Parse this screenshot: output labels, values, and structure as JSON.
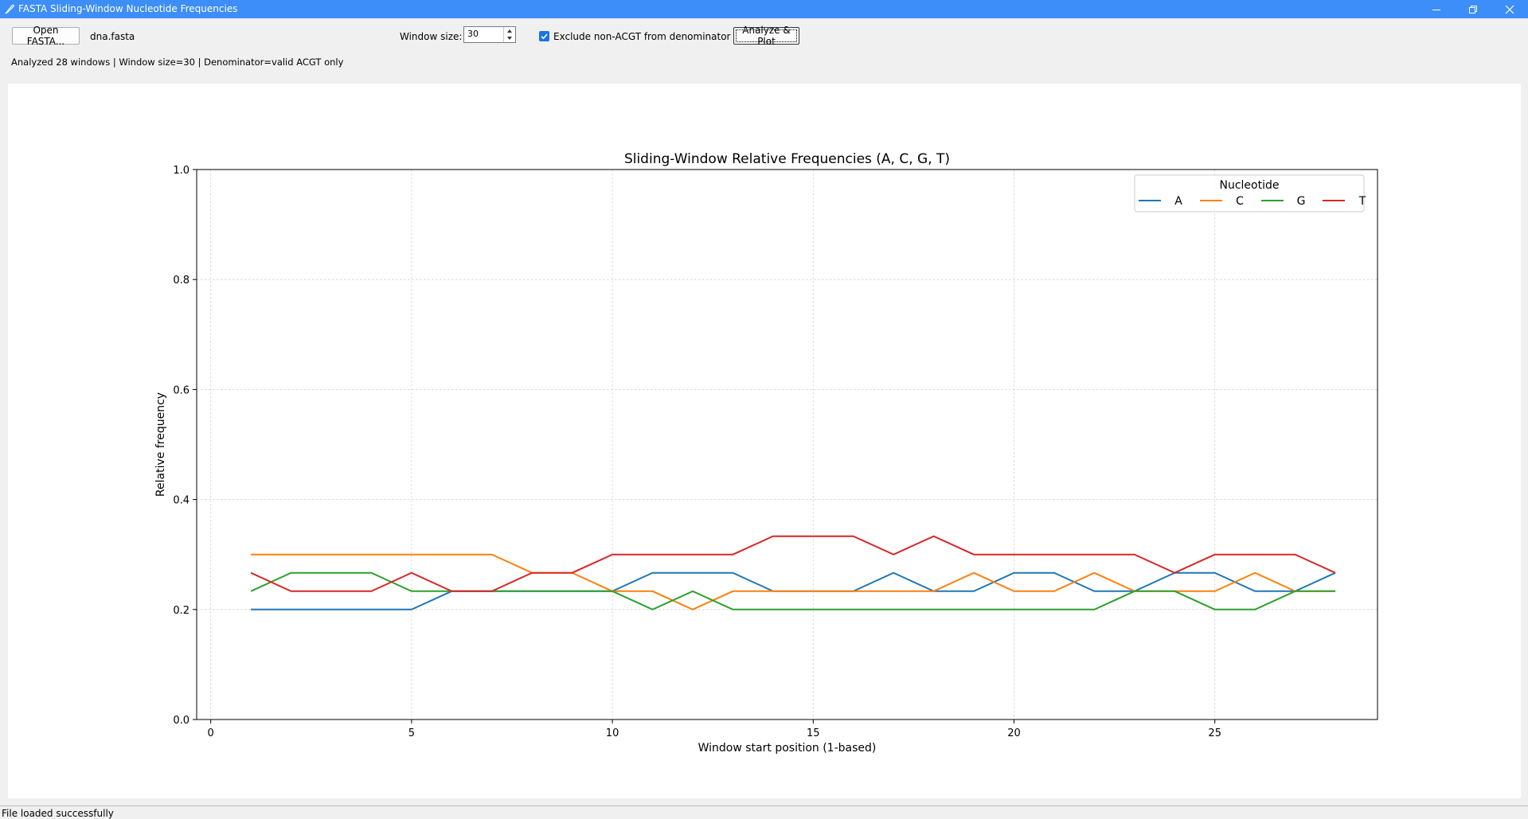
{
  "window": {
    "title": "FASTA Sliding-Window Nucleotide Frequencies",
    "icon": "feather-icon"
  },
  "toolbar": {
    "open_label": "Open FASTA...",
    "filename": "dna.fasta",
    "window_size_label": "Window size:",
    "window_size_value": "30",
    "exclude_label": "Exclude non-ACGT from denominator",
    "exclude_checked": true,
    "analyze_label": "Analyze & Plot"
  },
  "info": {
    "summary": "Analyzed 28 windows | Window size=30 | Denominator=valid ACGT only"
  },
  "status": {
    "message": "File loaded successfully"
  },
  "chart_data": {
    "type": "line",
    "title": "Sliding-Window Relative Frequencies (A, C, G, T)",
    "xlabel": "Window start position (1-based)",
    "ylabel": "Relative frequency",
    "xlim": [
      -0.35,
      29.05
    ],
    "ylim": [
      0.0,
      1.0
    ],
    "xticks": [
      0,
      5,
      10,
      15,
      20,
      25
    ],
    "yticks": [
      0.0,
      0.2,
      0.4,
      0.6,
      0.8,
      1.0
    ],
    "xtick_labels": [
      "0",
      "5",
      "10",
      "15",
      "20",
      "25"
    ],
    "ytick_labels": [
      "0.0",
      "0.2",
      "0.4",
      "0.6",
      "0.8",
      "1.0"
    ],
    "grid": true,
    "legend": {
      "title": "Nucleotide",
      "placement": "upper-right",
      "ncol": 4
    },
    "x": [
      1,
      2,
      3,
      4,
      5,
      6,
      7,
      8,
      9,
      10,
      11,
      12,
      13,
      14,
      15,
      16,
      17,
      18,
      19,
      20,
      21,
      22,
      23,
      24,
      25,
      26,
      27,
      28
    ],
    "series": [
      {
        "name": "A",
        "color": "#1f77b4",
        "values": [
          0.2,
          0.2,
          0.2,
          0.2,
          0.2,
          0.2333,
          0.2333,
          0.2333,
          0.2333,
          0.2333,
          0.2667,
          0.2667,
          0.2667,
          0.2333,
          0.2333,
          0.2333,
          0.2667,
          0.2333,
          0.2333,
          0.2667,
          0.2667,
          0.2333,
          0.2333,
          0.2667,
          0.2667,
          0.2333,
          0.2333,
          0.2667
        ]
      },
      {
        "name": "C",
        "color": "#ff7f0e",
        "values": [
          0.3,
          0.3,
          0.3,
          0.3,
          0.3,
          0.3,
          0.3,
          0.2667,
          0.2667,
          0.2333,
          0.2333,
          0.2,
          0.2333,
          0.2333,
          0.2333,
          0.2333,
          0.2333,
          0.2333,
          0.2667,
          0.2333,
          0.2333,
          0.2667,
          0.2333,
          0.2333,
          0.2333,
          0.2667,
          0.2333,
          0.2333
        ]
      },
      {
        "name": "G",
        "color": "#2ca02c",
        "values": [
          0.2333,
          0.2667,
          0.2667,
          0.2667,
          0.2333,
          0.2333,
          0.2333,
          0.2333,
          0.2333,
          0.2333,
          0.2,
          0.2333,
          0.2,
          0.2,
          0.2,
          0.2,
          0.2,
          0.2,
          0.2,
          0.2,
          0.2,
          0.2,
          0.2333,
          0.2333,
          0.2,
          0.2,
          0.2333,
          0.2333
        ]
      },
      {
        "name": "T",
        "color": "#d62728",
        "values": [
          0.2667,
          0.2333,
          0.2333,
          0.2333,
          0.2667,
          0.2333,
          0.2333,
          0.2667,
          0.2667,
          0.3,
          0.3,
          0.3,
          0.3,
          0.3333,
          0.3333,
          0.3333,
          0.3,
          0.3333,
          0.3,
          0.3,
          0.3,
          0.3,
          0.3,
          0.2667,
          0.3,
          0.3,
          0.3,
          0.2667
        ]
      }
    ]
  }
}
